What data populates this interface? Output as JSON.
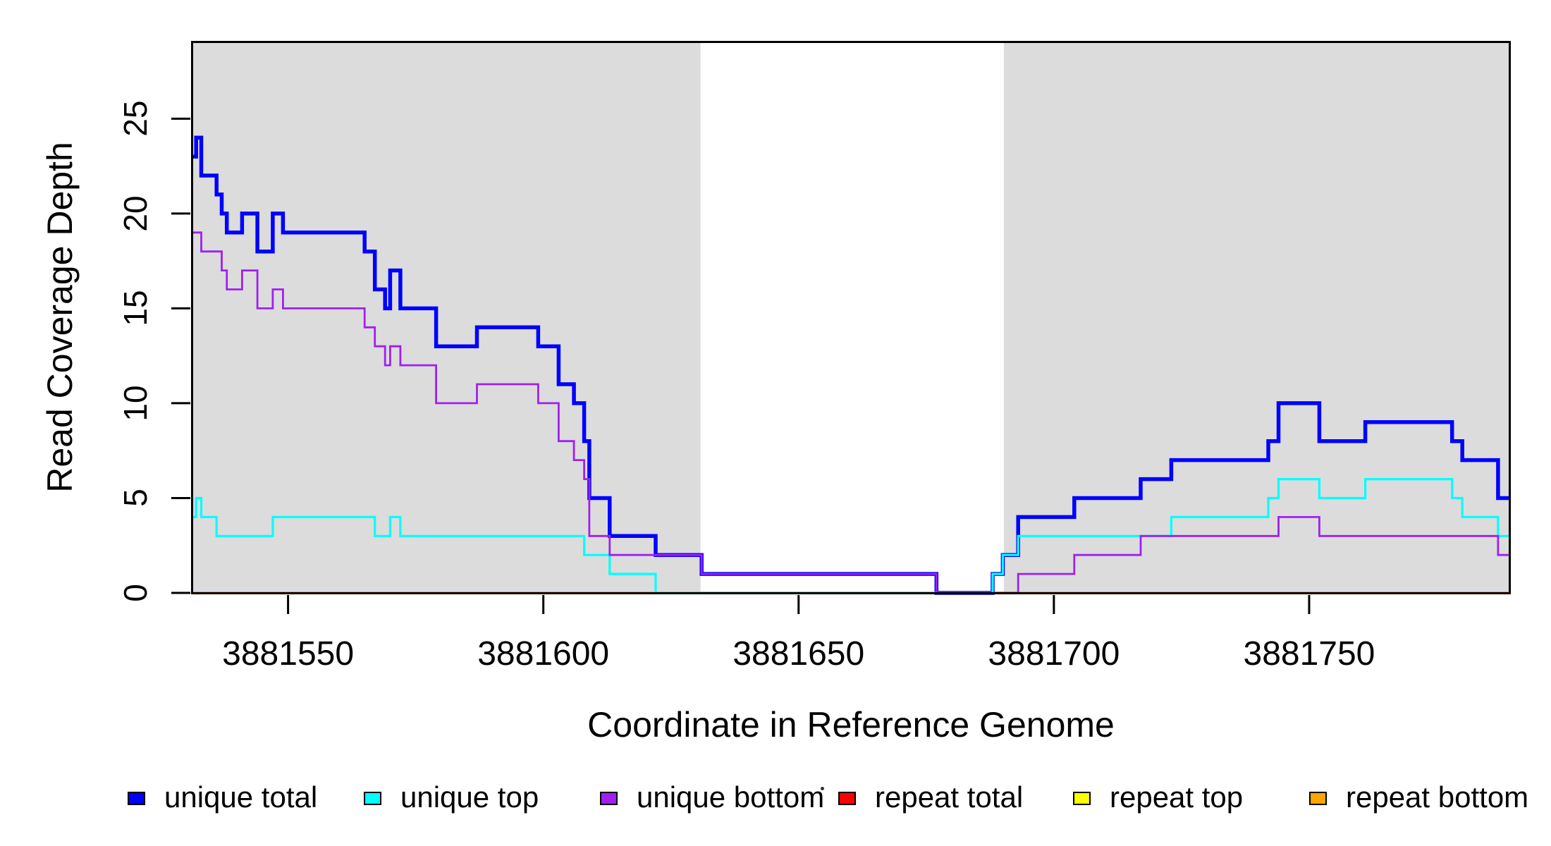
{
  "chart_data": {
    "type": "line",
    "step": true,
    "title": "",
    "xlabel": "Coordinate in Reference Genome",
    "ylabel": "Read Coverage Depth",
    "x_ticks": [
      3881550,
      3881600,
      3881650,
      3881700,
      3881750
    ],
    "y_ticks": [
      0,
      5,
      10,
      15,
      20,
      25
    ],
    "x_range": [
      3881531,
      3881789.5
    ],
    "y_range": [
      0,
      29.1
    ],
    "grid": false,
    "shade_color": "#DCDCDC",
    "shaded_regions": [
      {
        "from": 3881531,
        "to": 3881631
      },
      {
        "from": 3881690,
        "to": 3881789.5
      }
    ],
    "series": [
      {
        "name": "repeat total",
        "color": "#FF0000",
        "lwd": 3.5,
        "points": [
          [
            3881531,
            0
          ]
        ]
      },
      {
        "name": "repeat top",
        "color": "#FFFF00",
        "lwd": 3.5,
        "points": [
          [
            3881531,
            0
          ]
        ]
      },
      {
        "name": "repeat bottom",
        "color": "#FFA500",
        "lwd": 3.8,
        "points": [
          [
            3881531,
            0
          ]
        ]
      },
      {
        "name": "unique total",
        "color": "#0000FF",
        "lwd": 5.5,
        "points": [
          [
            3881531,
            23
          ],
          [
            3881532,
            24
          ],
          [
            3881533,
            22
          ],
          [
            3881536,
            21
          ],
          [
            3881537,
            20
          ],
          [
            3881538,
            19
          ],
          [
            3881541,
            20
          ],
          [
            3881544,
            18
          ],
          [
            3881547,
            20
          ],
          [
            3881549,
            19
          ],
          [
            3881565,
            18
          ],
          [
            3881567,
            16
          ],
          [
            3881569,
            15
          ],
          [
            3881570,
            17
          ],
          [
            3881572,
            15
          ],
          [
            3881579,
            13
          ],
          [
            3881587,
            14
          ],
          [
            3881599,
            13
          ],
          [
            3881603,
            11
          ],
          [
            3881606,
            10
          ],
          [
            3881608,
            8
          ],
          [
            3881609,
            5
          ],
          [
            3881613,
            3
          ],
          [
            3881622,
            2
          ],
          [
            3881631,
            1
          ],
          [
            3881677,
            0
          ],
          [
            3881688,
            1
          ],
          [
            3881690,
            2
          ],
          [
            3881693,
            4
          ],
          [
            3881704,
            5
          ],
          [
            3881717,
            6
          ],
          [
            3881723,
            7
          ],
          [
            3881742,
            8
          ],
          [
            3881744,
            10
          ],
          [
            3881752,
            8
          ],
          [
            3881761,
            9
          ],
          [
            3881778,
            8
          ],
          [
            3881780,
            7
          ],
          [
            3881787,
            5
          ]
        ]
      },
      {
        "name": "unique top",
        "color": "#00FFFF",
        "lwd": 3.2,
        "points": [
          [
            3881531,
            4
          ],
          [
            3881532,
            5
          ],
          [
            3881533,
            4
          ],
          [
            3881536,
            3
          ],
          [
            3881547,
            4
          ],
          [
            3881567,
            3
          ],
          [
            3881570,
            4
          ],
          [
            3881572,
            3
          ],
          [
            3881608,
            2
          ],
          [
            3881613,
            1
          ],
          [
            3881622,
            0
          ],
          [
            3881688,
            1
          ],
          [
            3881690,
            2
          ],
          [
            3881693,
            3
          ],
          [
            3881723,
            4
          ],
          [
            3881742,
            5
          ],
          [
            3881744,
            6
          ],
          [
            3881752,
            5
          ],
          [
            3881761,
            6
          ],
          [
            3881778,
            5
          ],
          [
            3881780,
            4
          ],
          [
            3881787,
            3
          ]
        ]
      },
      {
        "name": "unique bottom",
        "color": "#A020F0",
        "lwd": 2.8,
        "points": [
          [
            3881531,
            19
          ],
          [
            3881533,
            18
          ],
          [
            3881537,
            17
          ],
          [
            3881538,
            16
          ],
          [
            3881541,
            17
          ],
          [
            3881544,
            15
          ],
          [
            3881547,
            16
          ],
          [
            3881549,
            15
          ],
          [
            3881565,
            14
          ],
          [
            3881567,
            13
          ],
          [
            3881569,
            12
          ],
          [
            3881570,
            13
          ],
          [
            3881572,
            12
          ],
          [
            3881579,
            10
          ],
          [
            3881587,
            11
          ],
          [
            3881599,
            10
          ],
          [
            3881603,
            8
          ],
          [
            3881606,
            7
          ],
          [
            3881608,
            6
          ],
          [
            3881609,
            3
          ],
          [
            3881613,
            2
          ],
          [
            3881631,
            1
          ],
          [
            3881677,
            0
          ],
          [
            3881693,
            1
          ],
          [
            3881704,
            2
          ],
          [
            3881717,
            3
          ],
          [
            3881744,
            4
          ],
          [
            3881752,
            3
          ],
          [
            3881787,
            2
          ]
        ]
      }
    ],
    "legend": [
      {
        "label": "unique total",
        "color": "#0000FF"
      },
      {
        "label": "unique top",
        "color": "#00FFFF"
      },
      {
        "label": "unique bottom",
        "color": "#A020F0"
      },
      {
        "label": "repeat total",
        "color": "#FF0000"
      },
      {
        "label": "repeat top",
        "color": "#FFFF00"
      },
      {
        "label": "repeat bottom",
        "color": "#FFA500"
      }
    ],
    "legend_position": "bottom"
  }
}
